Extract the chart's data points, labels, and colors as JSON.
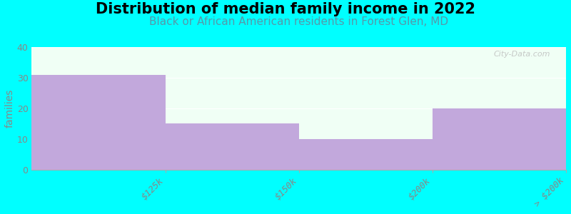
{
  "title": "Distribution of median family income in 2022",
  "subtitle": "Black or African American residents in Forest Glen, MD",
  "categories": [
    "$125k",
    "$150k",
    "$200k",
    "> $200k"
  ],
  "values": [
    31,
    15,
    10,
    20
  ],
  "bar_color": "#c2a8dc",
  "background_color": "#00ffff",
  "plot_bg_color": "#f0fff5",
  "ylabel": "families",
  "ylim": [
    0,
    40
  ],
  "yticks": [
    0,
    10,
    20,
    30,
    40
  ],
  "title_fontsize": 15,
  "subtitle_fontsize": 11,
  "subtitle_color": "#5599aa",
  "watermark": "City-Data.com",
  "tick_color": "#888888",
  "spine_color": "#aaaaaa"
}
